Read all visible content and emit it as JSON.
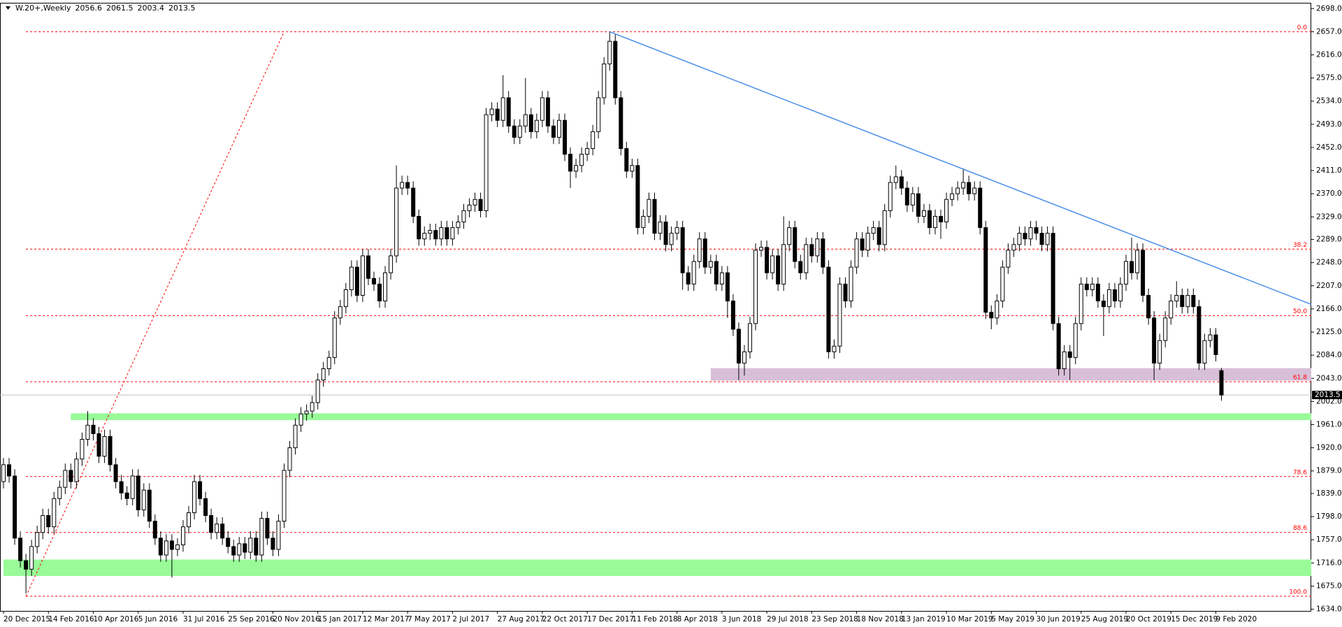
{
  "chart_data": {
    "type": "candlestick",
    "title": "W.20+,Weekly",
    "categories": [
      "20 Dec 2015",
      null,
      null,
      null,
      null,
      null,
      null,
      null,
      "14 Feb 2016",
      null,
      null,
      null,
      null,
      null,
      null,
      null,
      "10 Apr 2016",
      null,
      null,
      null,
      null,
      null,
      null,
      null,
      "5 Jun 2016",
      null,
      null,
      null,
      null,
      null,
      null,
      null,
      "31 Jul 2016",
      null,
      null,
      null,
      null,
      null,
      null,
      null,
      "25 Sep 2016",
      null,
      null,
      null,
      null,
      null,
      null,
      null,
      "20 Nov 2016",
      null,
      null,
      null,
      null,
      null,
      null,
      null,
      "15 Jan 2017",
      null,
      null,
      null,
      null,
      null,
      null,
      null,
      "12 Mar 2017",
      null,
      null,
      null,
      null,
      null,
      null,
      null,
      "7 May 2017",
      null,
      null,
      null,
      null,
      null,
      null,
      null,
      "2 Jul 2017",
      null,
      null,
      null,
      null,
      null,
      null,
      null,
      "27 Aug 2017",
      null,
      null,
      null,
      null,
      null,
      null,
      null,
      "22 Oct 2017",
      null,
      null,
      null,
      null,
      null,
      null,
      null,
      "17 Dec 2017",
      null,
      null,
      null,
      null,
      null,
      null,
      null,
      "11 Feb 2018",
      null,
      null,
      null,
      null,
      null,
      null,
      null,
      "8 Apr 2018",
      null,
      null,
      null,
      null,
      null,
      null,
      null,
      "3 Jun 2018",
      null,
      null,
      null,
      null,
      null,
      null,
      null,
      "29 Jul 2018",
      null,
      null,
      null,
      null,
      null,
      null,
      null,
      "23 Sep 2018",
      null,
      null,
      null,
      null,
      null,
      null,
      null,
      "18 Nov 2018",
      null,
      null,
      null,
      null,
      null,
      null,
      null,
      "13 Jan 2019",
      null,
      null,
      null,
      null,
      null,
      null,
      null,
      "10 Mar 2019",
      null,
      null,
      null,
      null,
      null,
      null,
      null,
      "5 May 2019",
      null,
      null,
      null,
      null,
      null,
      null,
      null,
      "30 Jun 2019",
      null,
      null,
      null,
      null,
      null,
      null,
      null,
      "25 Aug 2019",
      null,
      null,
      null,
      null,
      null,
      null,
      null,
      "20 Oct 2019",
      null,
      null,
      null,
      null,
      null,
      null,
      null,
      "15 Dec 2019",
      null,
      null,
      null,
      null,
      null,
      null,
      null,
      "9 Feb 2020",
      null
    ],
    "open": [
      1860,
      1890,
      1870,
      1760,
      1720,
      1705,
      1745,
      1770,
      1800,
      1780,
      1830,
      1850,
      1880,
      1860,
      1900,
      1935,
      1960,
      1945,
      1905,
      1940,
      1890,
      1860,
      1840,
      1830,
      1870,
      1810,
      1845,
      1790,
      1760,
      1730,
      1755,
      1740,
      1748,
      1780,
      1805,
      1860,
      1830,
      1800,
      1770,
      1785,
      1760,
      1745,
      1730,
      1750,
      1735,
      1760,
      1730,
      1795,
      1760,
      1740,
      1790,
      1880,
      1920,
      1960,
      1980,
      1985,
      2000,
      2040,
      2060,
      2080,
      2150,
      2170,
      2200,
      2240,
      2190,
      2260,
      2220,
      2210,
      2180,
      2230,
      2260,
      2380,
      2390,
      2380,
      2330,
      2290,
      2300,
      2305,
      2290,
      2310,
      2290,
      2310,
      2320,
      2340,
      2350,
      2360,
      2340,
      2510,
      2520,
      2500,
      2540,
      2490,
      2470,
      2490,
      2510,
      2480,
      2500,
      2540,
      2490,
      2470,
      2500,
      2440,
      2410,
      2420,
      2440,
      2450,
      2480,
      2540,
      2600,
      2640,
      2540,
      2450,
      2410,
      2420,
      2310,
      2330,
      2360,
      2300,
      2320,
      2280,
      2300,
      2310,
      2230,
      2210,
      2250,
      2290,
      2240,
      2250,
      2210,
      2230,
      2180,
      2130,
      2070,
      2090,
      2140,
      2270,
      2275,
      2230,
      2260,
      2210,
      2280,
      2310,
      2250,
      2230,
      2280,
      2260,
      2290,
      2240,
      2090,
      2100,
      2210,
      2180,
      2240,
      2290,
      2270,
      2300,
      2310,
      2280,
      2340,
      2390,
      2400,
      2380,
      2350,
      2370,
      2330,
      2340,
      2310,
      2330,
      2320,
      2360,
      2370,
      2380,
      2390,
      2370,
      2380,
      2310,
      2160,
      2150,
      2180,
      2240,
      2270,
      2280,
      2300,
      2290,
      2310,
      2300,
      2280,
      2300,
      2140,
      2060,
      2090,
      2080,
      2140,
      2210,
      2200,
      2210,
      2180,
      2170,
      2200,
      2180,
      2210,
      2250,
      2230,
      2270,
      2190,
      2150,
      2070,
      2110,
      2150,
      2180,
      2190,
      2170,
      2190,
      2170,
      2070,
      2110,
      2120,
      2056.6
    ],
    "high": [
      1902,
      1902,
      1882,
      1772,
      1732,
      1757,
      1782,
      1812,
      1812,
      1842,
      1862,
      1892,
      1892,
      1912,
      1947,
      1985,
      1972,
      1957,
      1952,
      1952,
      1902,
      1872,
      1852,
      1882,
      1882,
      1857,
      1857,
      1802,
      1772,
      1767,
      1767,
      1760,
      1792,
      1817,
      1872,
      1872,
      1842,
      1812,
      1797,
      1797,
      1772,
      1757,
      1762,
      1762,
      1772,
      1772,
      1807,
      1807,
      1772,
      1802,
      1892,
      1932,
      1972,
      1992,
      1997,
      2012,
      2052,
      2072,
      2092,
      2162,
      2182,
      2212,
      2252,
      2252,
      2272,
      2272,
      2232,
      2222,
      2242,
      2272,
      2420,
      2402,
      2402,
      2392,
      2342,
      2312,
      2317,
      2317,
      2322,
      2322,
      2322,
      2332,
      2352,
      2362,
      2372,
      2372,
      2522,
      2532,
      2532,
      2580,
      2552,
      2502,
      2502,
      2575,
      2522,
      2512,
      2552,
      2552,
      2502,
      2512,
      2512,
      2452,
      2432,
      2452,
      2462,
      2492,
      2552,
      2612,
      2657,
      2652,
      2552,
      2462,
      2432,
      2432,
      2342,
      2372,
      2372,
      2332,
      2332,
      2312,
      2322,
      2322,
      2242,
      2262,
      2302,
      2302,
      2262,
      2262,
      2242,
      2242,
      2192,
      2142,
      2102,
      2152,
      2282,
      2287,
      2287,
      2272,
      2272,
      2330,
      2322,
      2322,
      2262,
      2292,
      2292,
      2302,
      2302,
      2252,
      2112,
      2222,
      2222,
      2252,
      2302,
      2302,
      2312,
      2322,
      2322,
      2352,
      2402,
      2420,
      2412,
      2392,
      2382,
      2382,
      2352,
      2352,
      2342,
      2342,
      2372,
      2382,
      2392,
      2415,
      2402,
      2392,
      2392,
      2322,
      2172,
      2192,
      2252,
      2282,
      2292,
      2312,
      2312,
      2322,
      2322,
      2312,
      2312,
      2312,
      2152,
      2102,
      2102,
      2152,
      2222,
      2222,
      2222,
      2222,
      2192,
      2212,
      2212,
      2222,
      2262,
      2292,
      2282,
      2282,
      2202,
      2162,
      2122,
      2162,
      2192,
      2215,
      2202,
      2202,
      2202,
      2182,
      2122,
      2132,
      2132,
      2061.5
    ],
    "low": [
      1848,
      1858,
      1748,
      1708,
      1662,
      1693,
      1733,
      1758,
      1768,
      1768,
      1818,
      1838,
      1848,
      1848,
      1888,
      1923,
      1933,
      1893,
      1893,
      1878,
      1848,
      1828,
      1818,
      1818,
      1798,
      1798,
      1778,
      1748,
      1718,
      1718,
      1690,
      1728,
      1736,
      1768,
      1793,
      1818,
      1788,
      1758,
      1758,
      1748,
      1733,
      1718,
      1718,
      1723,
      1723,
      1718,
      1718,
      1748,
      1728,
      1728,
      1778,
      1868,
      1908,
      1948,
      1968,
      1973,
      1988,
      2028,
      2048,
      2068,
      2138,
      2158,
      2188,
      2178,
      2178,
      2208,
      2198,
      2168,
      2168,
      2218,
      2248,
      2368,
      2368,
      2318,
      2278,
      2278,
      2288,
      2278,
      2278,
      2278,
      2278,
      2298,
      2308,
      2328,
      2338,
      2328,
      2328,
      2498,
      2488,
      2488,
      2478,
      2458,
      2458,
      2478,
      2468,
      2468,
      2488,
      2478,
      2458,
      2458,
      2428,
      2380,
      2398,
      2408,
      2428,
      2438,
      2468,
      2528,
      2588,
      2528,
      2438,
      2398,
      2398,
      2298,
      2298,
      2318,
      2288,
      2288,
      2268,
      2268,
      2288,
      2200,
      2198,
      2198,
      2238,
      2228,
      2228,
      2198,
      2198,
      2150,
      2118,
      2040,
      2048,
      2078,
      2128,
      2258,
      2218,
      2218,
      2198,
      2198,
      2268,
      2238,
      2218,
      2218,
      2248,
      2248,
      2228,
      2078,
      2078,
      2088,
      2168,
      2168,
      2228,
      2258,
      2258,
      2288,
      2268,
      2268,
      2328,
      2378,
      2368,
      2338,
      2338,
      2318,
      2318,
      2298,
      2298,
      2290,
      2308,
      2348,
      2358,
      2368,
      2358,
      2358,
      2298,
      2148,
      2130,
      2138,
      2168,
      2228,
      2258,
      2268,
      2278,
      2278,
      2288,
      2268,
      2268,
      2128,
      2048,
      2048,
      2040,
      2068,
      2128,
      2188,
      2188,
      2168,
      2118,
      2158,
      2168,
      2168,
      2198,
      2218,
      2218,
      2178,
      2138,
      2040,
      2058,
      2098,
      2138,
      2168,
      2158,
      2158,
      2158,
      2058,
      2058,
      2098,
      2073,
      2003.4
    ],
    "close": [
      1890,
      1870,
      1760,
      1720,
      1705,
      1745,
      1770,
      1800,
      1780,
      1830,
      1850,
      1880,
      1860,
      1900,
      1935,
      1960,
      1945,
      1905,
      1940,
      1890,
      1860,
      1840,
      1830,
      1870,
      1810,
      1845,
      1790,
      1760,
      1730,
      1755,
      1740,
      1748,
      1780,
      1805,
      1860,
      1830,
      1800,
      1770,
      1785,
      1760,
      1745,
      1730,
      1750,
      1735,
      1760,
      1730,
      1795,
      1760,
      1740,
      1790,
      1880,
      1920,
      1960,
      1980,
      1985,
      2000,
      2040,
      2060,
      2080,
      2150,
      2170,
      2200,
      2240,
      2190,
      2260,
      2220,
      2210,
      2180,
      2230,
      2260,
      2380,
      2390,
      2380,
      2330,
      2290,
      2300,
      2305,
      2290,
      2310,
      2290,
      2310,
      2320,
      2340,
      2350,
      2360,
      2340,
      2510,
      2520,
      2500,
      2540,
      2490,
      2470,
      2490,
      2510,
      2480,
      2500,
      2540,
      2490,
      2470,
      2500,
      2440,
      2410,
      2420,
      2440,
      2450,
      2480,
      2540,
      2600,
      2640,
      2540,
      2450,
      2410,
      2420,
      2310,
      2330,
      2360,
      2300,
      2320,
      2280,
      2300,
      2310,
      2230,
      2210,
      2250,
      2290,
      2240,
      2250,
      2210,
      2230,
      2180,
      2130,
      2070,
      2090,
      2140,
      2270,
      2275,
      2230,
      2260,
      2210,
      2280,
      2310,
      2250,
      2230,
      2280,
      2260,
      2290,
      2240,
      2090,
      2100,
      2210,
      2180,
      2240,
      2290,
      2270,
      2300,
      2310,
      2280,
      2340,
      2390,
      2400,
      2380,
      2350,
      2370,
      2330,
      2340,
      2310,
      2330,
      2320,
      2360,
      2370,
      2380,
      2390,
      2370,
      2380,
      2310,
      2160,
      2150,
      2180,
      2240,
      2270,
      2280,
      2300,
      2290,
      2310,
      2300,
      2280,
      2300,
      2140,
      2060,
      2090,
      2080,
      2140,
      2210,
      2200,
      2210,
      2180,
      2170,
      2200,
      2180,
      2210,
      2250,
      2230,
      2270,
      2190,
      2150,
      2070,
      2110,
      2150,
      2180,
      2190,
      2170,
      2190,
      2170,
      2070,
      2110,
      2120,
      2085,
      2013.5
    ],
    "up_color": "#ffffff",
    "down_color": "#000000",
    "ylim": [
      1631,
      2707
    ],
    "yticks": [
      {
        "value": 2698,
        "label": "2698.0"
      },
      {
        "value": 2657,
        "label": "2657.0"
      },
      {
        "value": 2616,
        "label": "2616.0"
      },
      {
        "value": 2575,
        "label": "2575.0"
      },
      {
        "value": 2534,
        "label": "2534.0"
      },
      {
        "value": 2493,
        "label": "2493.0"
      },
      {
        "value": 2452,
        "label": "2452.0"
      },
      {
        "value": 2411,
        "label": "2411.0"
      },
      {
        "value": 2370,
        "label": "2370.0"
      },
      {
        "value": 2329,
        "label": "2329.0"
      },
      {
        "value": 2289,
        "label": "2289.0"
      },
      {
        "value": 2248,
        "label": "2248.0"
      },
      {
        "value": 2207,
        "label": "2207.0"
      },
      {
        "value": 2166,
        "label": "2166.0"
      },
      {
        "value": 2125,
        "label": "2125.0"
      },
      {
        "value": 2084,
        "label": "2084.0"
      },
      {
        "value": 2043,
        "label": "2043.0"
      },
      {
        "value": 2002,
        "label": "2002.0"
      },
      {
        "value": 1961,
        "label": "1961.0"
      },
      {
        "value": 1920,
        "label": "1920.0"
      },
      {
        "value": 1879,
        "label": "1879.0"
      },
      {
        "value": 1839,
        "label": "1839.0"
      },
      {
        "value": 1798,
        "label": "1798.0"
      },
      {
        "value": 1757,
        "label": "1757.0"
      },
      {
        "value": 1716,
        "label": "1716.0"
      },
      {
        "value": 1675,
        "label": "1675.0"
      },
      {
        "value": 1634,
        "label": "1634.0"
      }
    ],
    "grid": false,
    "fibonacci": {
      "color": "#ff0000",
      "start_index": 4,
      "end_index": 50,
      "levels": [
        {
          "label": "0.0",
          "price": 2657
        },
        {
          "label": "38.2",
          "price": 2272
        },
        {
          "label": "50.0",
          "price": 2154
        },
        {
          "label": "61.8",
          "price": 2037
        },
        {
          "label": "78.6",
          "price": 1869
        },
        {
          "label": "88.6",
          "price": 1770
        },
        {
          "label": "100.0",
          "price": 1657
        }
      ]
    },
    "trendline": {
      "color": "#4a8fe7",
      "start_index": 108,
      "start_price": 2657,
      "end_index": 233,
      "end_price": 2174
    },
    "zones": [
      {
        "start_index": 12,
        "low": 1969,
        "high": 1981,
        "color": "#98fb98"
      },
      {
        "start_index": 0,
        "low": 1693,
        "high": 1722,
        "color": "#98fb98"
      },
      {
        "start_index": 126,
        "low": 2039,
        "high": 2061,
        "color": "#d8bfd8"
      }
    ]
  }
}
